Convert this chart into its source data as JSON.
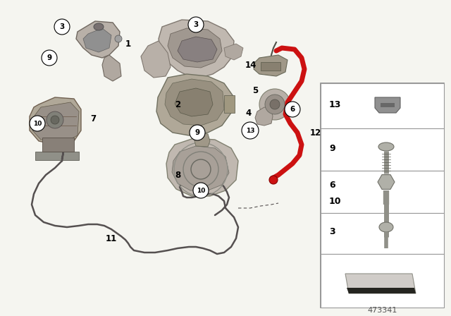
{
  "bg_color": "#f5f5f0",
  "part_number": "473341",
  "fig_width": 6.4,
  "fig_height": 4.48,
  "dpi": 100,
  "red_cable_color": "#cc1111",
  "dark_gray": "#555555",
  "med_gray": "#999999",
  "light_gray": "#c8c8c8",
  "part_color_1": "#a8a8a8",
  "part_color_2": "#888888",
  "part_color_3": "#c0b8b0",
  "part_color_dark": "#606060"
}
